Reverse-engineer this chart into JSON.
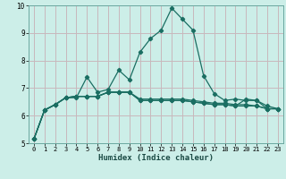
{
  "xlabel": "Humidex (Indice chaleur)",
  "xlim": [
    -0.5,
    23.5
  ],
  "ylim": [
    5,
    10
  ],
  "bg_color": "#cceee8",
  "grid_color": "#c8b8bc",
  "line_color": "#1a6e62",
  "x": [
    0,
    1,
    2,
    3,
    4,
    5,
    6,
    7,
    8,
    9,
    10,
    11,
    12,
    13,
    14,
    15,
    16,
    17,
    18,
    19,
    20,
    21,
    22,
    23
  ],
  "line1": [
    5.15,
    6.2,
    6.4,
    6.65,
    6.65,
    7.4,
    6.85,
    6.95,
    7.65,
    7.3,
    8.3,
    8.8,
    9.1,
    9.9,
    9.5,
    9.1,
    7.45,
    6.8,
    6.55,
    6.6,
    6.55,
    6.55,
    6.25,
    6.25
  ],
  "line2": [
    5.15,
    6.2,
    6.4,
    6.65,
    6.7,
    6.7,
    6.7,
    6.85,
    6.85,
    6.85,
    6.6,
    6.6,
    6.6,
    6.6,
    6.6,
    6.55,
    6.5,
    6.45,
    6.45,
    6.4,
    6.4,
    6.35,
    6.25,
    6.25
  ],
  "line3": [
    5.15,
    6.2,
    6.4,
    6.65,
    6.7,
    6.7,
    6.7,
    6.85,
    6.85,
    6.85,
    6.55,
    6.55,
    6.55,
    6.55,
    6.55,
    6.5,
    6.45,
    6.4,
    6.4,
    6.35,
    6.35,
    6.35,
    6.25,
    6.25
  ],
  "line4": [
    5.15,
    6.2,
    6.4,
    6.65,
    6.7,
    6.7,
    6.7,
    6.85,
    6.85,
    6.85,
    6.55,
    6.55,
    6.55,
    6.55,
    6.55,
    6.5,
    6.45,
    6.4,
    6.4,
    6.35,
    6.6,
    6.55,
    6.35,
    6.25
  ],
  "yticks": [
    5,
    6,
    7,
    8,
    9,
    10
  ],
  "xticks": [
    0,
    1,
    2,
    3,
    4,
    5,
    6,
    7,
    8,
    9,
    10,
    11,
    12,
    13,
    14,
    15,
    16,
    17,
    18,
    19,
    20,
    21,
    22,
    23
  ]
}
